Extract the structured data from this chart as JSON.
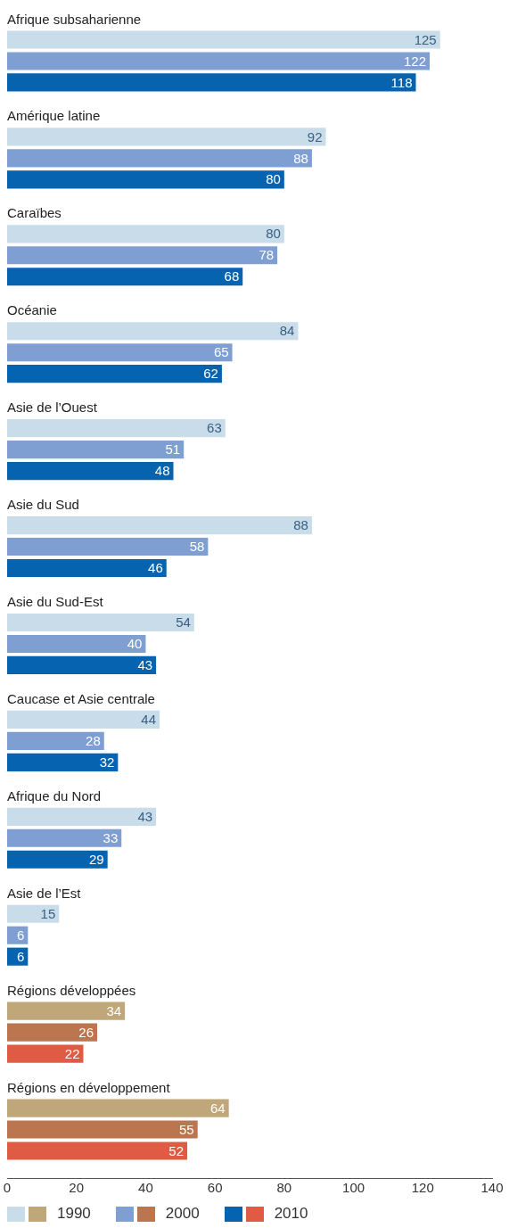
{
  "chart_data": {
    "type": "bar",
    "orientation": "horizontal",
    "categories": [
      "Afrique subsaharienne",
      "Amérique latine",
      "Caraïbes",
      "Océanie",
      "Asie de l’Ouest",
      "Asie du Sud",
      "Asie du Sud-Est",
      "Caucase et Asie centrale",
      "Afrique du Nord",
      "Asie de l’Est",
      "Régions développées",
      "Régions en développement"
    ],
    "series": [
      {
        "name": "1990",
        "colors": [
          "#c9dcea",
          "#c9dcea",
          "#c9dcea",
          "#c9dcea",
          "#c9dcea",
          "#c9dcea",
          "#c9dcea",
          "#c9dcea",
          "#c9dcea",
          "#c9dcea",
          "#bfa77a",
          "#bfa77a"
        ],
        "values": [
          125,
          92,
          80,
          84,
          63,
          88,
          54,
          44,
          43,
          15,
          34,
          64
        ]
      },
      {
        "name": "2000",
        "colors": [
          "#7f9fd3",
          "#7f9fd3",
          "#7f9fd3",
          "#7f9fd3",
          "#7f9fd3",
          "#7f9fd3",
          "#7f9fd3",
          "#7f9fd3",
          "#7f9fd3",
          "#7f9fd3",
          "#bb7650",
          "#bb7650"
        ],
        "values": [
          122,
          88,
          78,
          65,
          51,
          58,
          40,
          28,
          33,
          6,
          26,
          55
        ]
      },
      {
        "name": "2010",
        "colors": [
          "#0563b0",
          "#0563b0",
          "#0563b0",
          "#0563b0",
          "#0563b0",
          "#0563b0",
          "#0563b0",
          "#0563b0",
          "#0563b0",
          "#0563b0",
          "#e05b43",
          "#e05b43"
        ],
        "values": [
          118,
          80,
          68,
          62,
          48,
          46,
          43,
          32,
          29,
          6,
          22,
          52
        ]
      }
    ],
    "xlim": [
      0,
      140
    ],
    "xticks": [
      0,
      20,
      40,
      60,
      80,
      100,
      120,
      140
    ],
    "data_labels": true,
    "legend": "bottom",
    "grid": false
  }
}
